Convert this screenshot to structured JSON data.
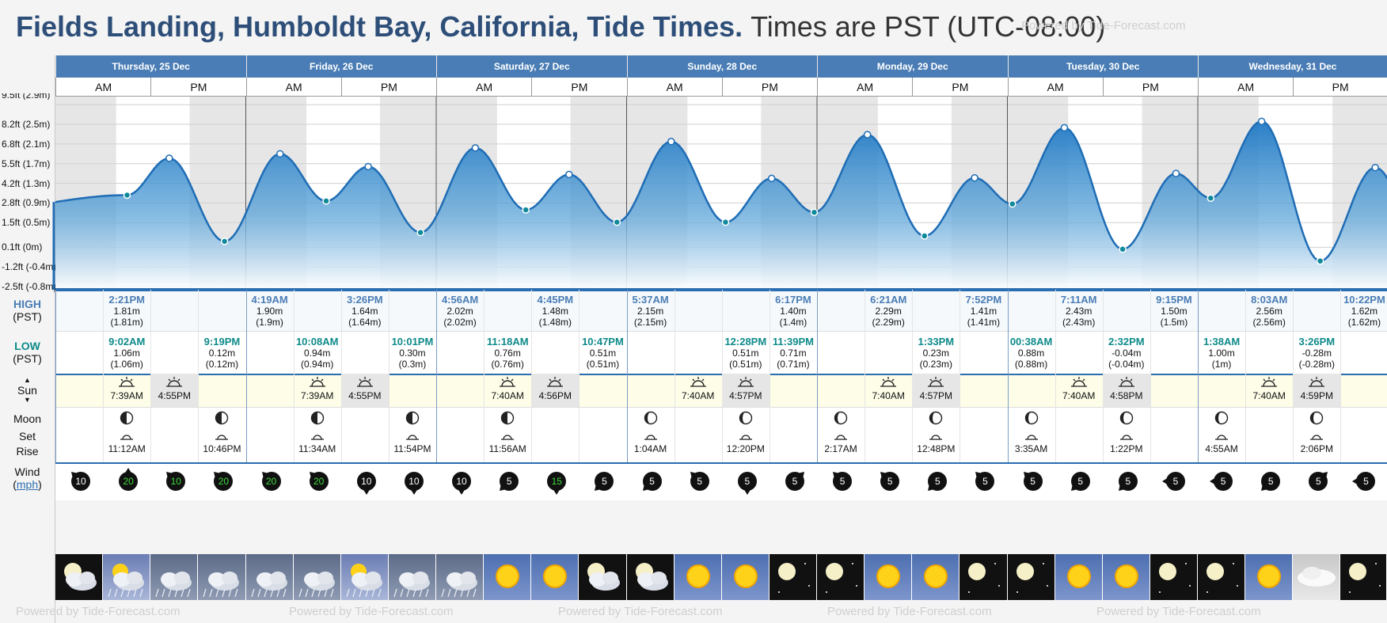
{
  "header": {
    "title": "Fields Landing, Humboldt Bay, California, Tide Times.",
    "timezone": "Times are PST (UTC-08:00)",
    "powered": "Powered by Tide-Forecast.com"
  },
  "days": [
    "Thursday, 25 Dec",
    "Friday, 26 Dec",
    "Saturday, 27 Dec",
    "Sunday, 28 Dec",
    "Monday, 29 Dec",
    "Tuesday, 30 Dec",
    "Wednesday, 31 Dec"
  ],
  "ampm": {
    "am": "AM",
    "pm": "PM"
  },
  "row_labels": {
    "high": "HIGH",
    "low": "LOW",
    "tz": "(PST)",
    "sun": "Sun",
    "moon": "Moon",
    "set": "Set",
    "rise": "Rise",
    "wind": "Wind",
    "wind_unit": "mph"
  },
  "chart_data": {
    "type": "area",
    "ylabel": "",
    "yticks": [
      "9.5ft (2.9m)",
      "8.2ft (2.5m)",
      "6.8ft (2.1m)",
      "5.5ft (1.7m)",
      "4.2ft (1.3m)",
      "2.8ft (0.9m)",
      "1.5ft (0.5m)",
      "0.1ft (0m)",
      "-1.2ft (-0.4m)",
      "-2.5ft (-0.8m)"
    ],
    "ytick_values_m": [
      2.9,
      2.5,
      2.1,
      1.7,
      1.3,
      0.9,
      0.5,
      0.0,
      -0.4,
      -0.8
    ],
    "ylim_m": [
      -0.8,
      3.0
    ],
    "x_range_hours": [
      0,
      174.6
    ],
    "extremes": [
      {
        "h": 9.03,
        "m": 1.06,
        "type": "low"
      },
      {
        "h": 14.35,
        "m": 1.81,
        "type": "high"
      },
      {
        "h": 21.32,
        "m": 0.12,
        "type": "low"
      },
      {
        "h": 28.32,
        "m": 1.9,
        "type": "high"
      },
      {
        "h": 34.13,
        "m": 0.94,
        "type": "low"
      },
      {
        "h": 39.43,
        "m": 1.64,
        "type": "high"
      },
      {
        "h": 46.02,
        "m": 0.3,
        "type": "low"
      },
      {
        "h": 52.93,
        "m": 2.02,
        "type": "high"
      },
      {
        "h": 59.3,
        "m": 0.76,
        "type": "low"
      },
      {
        "h": 64.75,
        "m": 1.48,
        "type": "high"
      },
      {
        "h": 70.78,
        "m": 0.51,
        "type": "low"
      },
      {
        "h": 77.62,
        "m": 2.15,
        "type": "high"
      },
      {
        "h": 84.47,
        "m": 0.51,
        "type": "low"
      },
      {
        "h": 90.28,
        "m": 1.4,
        "type": "high"
      },
      {
        "h": 95.65,
        "m": 0.71,
        "type": "low"
      },
      {
        "h": 102.35,
        "m": 2.29,
        "type": "high"
      },
      {
        "h": 109.55,
        "m": 0.23,
        "type": "low"
      },
      {
        "h": 115.87,
        "m": 1.41,
        "type": "high"
      },
      {
        "h": 120.63,
        "m": 0.88,
        "type": "low"
      },
      {
        "h": 127.18,
        "m": 2.43,
        "type": "high"
      },
      {
        "h": 134.53,
        "m": -0.04,
        "type": "low"
      },
      {
        "h": 141.25,
        "m": 1.5,
        "type": "high"
      },
      {
        "h": 145.63,
        "m": 1.0,
        "type": "low"
      },
      {
        "h": 152.05,
        "m": 2.56,
        "type": "high"
      },
      {
        "h": 159.43,
        "m": -0.28,
        "type": "low"
      },
      {
        "h": 166.37,
        "m": 1.62,
        "type": "high"
      }
    ],
    "curve_start": {
      "h": 0,
      "m": 0.92
    },
    "nights": [
      [
        0,
        7.65
      ],
      [
        16.92,
        31.65
      ],
      [
        40.92,
        55.67
      ],
      [
        64.93,
        79.67
      ],
      [
        88.95,
        103.67
      ],
      [
        112.95,
        127.67
      ],
      [
        136.97,
        151.67
      ],
      [
        160.98,
        174.6
      ]
    ]
  },
  "highs": [
    {
      "day": 0,
      "slot": 1,
      "time": "2:21PM",
      "m": "1.81m",
      "paren": "(1.81m)"
    },
    {
      "day": 1,
      "slot": 0,
      "time": "4:19AM",
      "m": "1.90m",
      "paren": "(1.9m)"
    },
    {
      "day": 1,
      "slot": 2,
      "time": "3:26PM",
      "m": "1.64m",
      "paren": "(1.64m)"
    },
    {
      "day": 2,
      "slot": 0,
      "time": "4:56AM",
      "m": "2.02m",
      "paren": "(2.02m)"
    },
    {
      "day": 2,
      "slot": 2,
      "time": "4:45PM",
      "m": "1.48m",
      "paren": "(1.48m)"
    },
    {
      "day": 3,
      "slot": 0,
      "time": "5:37AM",
      "m": "2.15m",
      "paren": "(2.15m)"
    },
    {
      "day": 3,
      "slot": 3,
      "time": "6:17PM",
      "m": "1.40m",
      "paren": "(1.4m)"
    },
    {
      "day": 4,
      "slot": 1,
      "time": "6:21AM",
      "m": "2.29m",
      "paren": "(2.29m)"
    },
    {
      "day": 4,
      "slot": 3,
      "time": "7:52PM",
      "m": "1.41m",
      "paren": "(1.41m)"
    },
    {
      "day": 5,
      "slot": 1,
      "time": "7:11AM",
      "m": "2.43m",
      "paren": "(2.43m)"
    },
    {
      "day": 5,
      "slot": 3,
      "time": "9:15PM",
      "m": "1.50m",
      "paren": "(1.5m)"
    },
    {
      "day": 6,
      "slot": 1,
      "time": "8:03AM",
      "m": "2.56m",
      "paren": "(2.56m)"
    },
    {
      "day": 6,
      "slot": 3,
      "time": "10:22PM",
      "m": "1.62m",
      "paren": "(1.62m)"
    }
  ],
  "lows": [
    {
      "day": 0,
      "slot": 1,
      "time": "9:02AM",
      "m": "1.06m",
      "paren": "(1.06m)"
    },
    {
      "day": 0,
      "slot": 3,
      "time": "9:19PM",
      "m": "0.12m",
      "paren": "(0.12m)"
    },
    {
      "day": 1,
      "slot": 1,
      "time": "10:08AM",
      "m": "0.94m",
      "paren": "(0.94m)"
    },
    {
      "day": 1,
      "slot": 3,
      "time": "10:01PM",
      "m": "0.30m",
      "paren": "(0.3m)"
    },
    {
      "day": 2,
      "slot": 1,
      "time": "11:18AM",
      "m": "0.76m",
      "paren": "(0.76m)"
    },
    {
      "day": 2,
      "slot": 3,
      "time": "10:47PM",
      "m": "0.51m",
      "paren": "(0.51m)"
    },
    {
      "day": 3,
      "slot": 2,
      "time": "12:28PM",
      "m": "0.51m",
      "paren": "(0.51m)"
    },
    {
      "day": 3,
      "slot": 3,
      "time": "11:39PM",
      "m": "0.71m",
      "paren": "(0.71m)"
    },
    {
      "day": 4,
      "slot": 2,
      "time": "1:33PM",
      "m": "0.23m",
      "paren": "(0.23m)"
    },
    {
      "day": 5,
      "slot": 0,
      "time": "00:38AM",
      "m": "0.88m",
      "paren": "(0.88m)"
    },
    {
      "day": 5,
      "slot": 2,
      "time": "2:32PM",
      "m": "-0.04m",
      "paren": "(-0.04m)"
    },
    {
      "day": 6,
      "slot": 0,
      "time": "1:38AM",
      "m": "1.00m",
      "paren": "(1m)"
    },
    {
      "day": 6,
      "slot": 2,
      "time": "3:26PM",
      "m": "-0.28m",
      "paren": "(-0.28m)"
    }
  ],
  "sun": [
    {
      "day": 0,
      "rise": "7:39AM",
      "set": "4:55PM"
    },
    {
      "day": 1,
      "rise": "7:39AM",
      "set": "4:55PM"
    },
    {
      "day": 2,
      "rise": "7:40AM",
      "set": "4:56PM"
    },
    {
      "day": 3,
      "rise": "7:40AM",
      "set": "4:57PM"
    },
    {
      "day": 4,
      "rise": "7:40AM",
      "set": "4:57PM"
    },
    {
      "day": 5,
      "rise": "7:40AM",
      "set": "4:58PM"
    },
    {
      "day": 6,
      "rise": "7:40AM",
      "set": "4:59PM"
    }
  ],
  "moon": [
    {
      "day": 0,
      "slot": 1,
      "time": "11:12AM",
      "phase": "first-quarter"
    },
    {
      "day": 0,
      "slot": 3,
      "time": "10:46PM",
      "phase": "first-quarter"
    },
    {
      "day": 1,
      "slot": 1,
      "time": "11:34AM",
      "phase": "first-quarter"
    },
    {
      "day": 1,
      "slot": 3,
      "time": "11:54PM",
      "phase": "first-quarter"
    },
    {
      "day": 2,
      "slot": 1,
      "time": "11:56AM",
      "phase": "first-quarter"
    },
    {
      "day": 3,
      "slot": 0,
      "time": "1:04AM",
      "phase": "waxing-gibbous"
    },
    {
      "day": 3,
      "slot": 2,
      "time": "12:20PM",
      "phase": "waxing-gibbous"
    },
    {
      "day": 4,
      "slot": 0,
      "time": "2:17AM",
      "phase": "waxing-gibbous"
    },
    {
      "day": 4,
      "slot": 2,
      "time": "12:48PM",
      "phase": "waxing-gibbous"
    },
    {
      "day": 5,
      "slot": 0,
      "time": "3:35AM",
      "phase": "waxing-gibbous"
    },
    {
      "day": 5,
      "slot": 2,
      "time": "1:22PM",
      "phase": "waxing-gibbous"
    },
    {
      "day": 6,
      "slot": 0,
      "time": "4:55AM",
      "phase": "waxing-gibbous"
    },
    {
      "day": 6,
      "slot": 2,
      "time": "2:06PM",
      "phase": "waxing-gibbous"
    }
  ],
  "wind": [
    {
      "v": "10",
      "dir": "nw",
      "green": false
    },
    {
      "v": "20",
      "dir": "n",
      "green": true
    },
    {
      "v": "10",
      "dir": "nw",
      "green": true
    },
    {
      "v": "20",
      "dir": "nw",
      "green": true
    },
    {
      "v": "20",
      "dir": "nw",
      "green": true
    },
    {
      "v": "20",
      "dir": "nw",
      "green": true
    },
    {
      "v": "10",
      "dir": "s",
      "green": false
    },
    {
      "v": "10",
      "dir": "s",
      "green": false
    },
    {
      "v": "10",
      "dir": "s",
      "green": false
    },
    {
      "v": "5",
      "dir": "sw",
      "green": false
    },
    {
      "v": "15",
      "dir": "s",
      "green": true
    },
    {
      "v": "5",
      "dir": "sw",
      "green": false
    },
    {
      "v": "5",
      "dir": "sw",
      "green": false
    },
    {
      "v": "5",
      "dir": "nw",
      "green": false
    },
    {
      "v": "5",
      "dir": "s",
      "green": false
    },
    {
      "v": "5",
      "dir": "ne",
      "green": false
    },
    {
      "v": "5",
      "dir": "nw",
      "green": false
    },
    {
      "v": "5",
      "dir": "nw",
      "green": false
    },
    {
      "v": "5",
      "dir": "sw",
      "green": false
    },
    {
      "v": "5",
      "dir": "nw",
      "green": false
    },
    {
      "v": "5",
      "dir": "nw",
      "green": false
    },
    {
      "v": "5",
      "dir": "sw",
      "green": false
    },
    {
      "v": "5",
      "dir": "sw",
      "green": false
    },
    {
      "v": "5",
      "dir": "w",
      "green": false
    },
    {
      "v": "5",
      "dir": "w",
      "green": false
    },
    {
      "v": "5",
      "dir": "sw",
      "green": false
    },
    {
      "v": "5",
      "dir": "ne",
      "green": false
    },
    {
      "v": "5",
      "dir": "w",
      "green": false
    }
  ],
  "weather": [
    "night-cloud",
    "cloud-day",
    "rain",
    "rain",
    "rain",
    "rain",
    "cloud-day",
    "rain",
    "rain",
    "sun",
    "sun",
    "night-cloud",
    "night-cloud",
    "sun",
    "sun",
    "night",
    "night",
    "sun",
    "sun",
    "night",
    "night",
    "sun",
    "sun",
    "night",
    "night",
    "sun",
    "grey",
    "night"
  ]
}
